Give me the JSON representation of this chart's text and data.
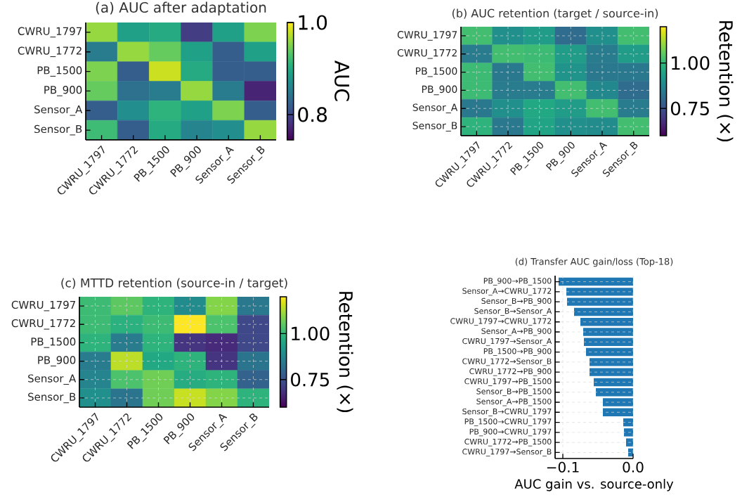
{
  "chart_data": [
    {
      "type": "heatmap",
      "title": "(a) AUC after adaptation",
      "categories": [
        "CWRU_1797",
        "CWRU_1772",
        "PB_1500",
        "PB_900",
        "Sensor_A",
        "Sensor_B"
      ],
      "y_categories": [
        "CWRU_1797",
        "CWRU_1772",
        "PB_1500",
        "PB_900",
        "Sensor_A",
        "Sensor_B"
      ],
      "cells": [
        [
          0.96,
          0.89,
          0.9,
          0.79,
          0.89,
          0.95
        ],
        [
          0.85,
          0.96,
          0.94,
          0.89,
          0.82,
          0.89
        ],
        [
          0.95,
          0.82,
          0.98,
          0.9,
          0.82,
          0.82
        ],
        [
          0.94,
          0.84,
          0.85,
          0.96,
          0.85,
          0.77
        ],
        [
          0.82,
          0.87,
          0.91,
          0.89,
          0.95,
          0.82
        ],
        [
          0.92,
          0.82,
          0.9,
          0.86,
          0.87,
          0.96
        ]
      ],
      "clim": [
        0.745,
        1.0
      ],
      "cticks": [
        {
          "value": 0.8,
          "label": "0.8"
        },
        {
          "value": 1.0,
          "label": "1.0"
        }
      ],
      "clabel": "AUC"
    },
    {
      "type": "heatmap",
      "title": "(b) AUC retention (target / source-in)",
      "categories": [
        "CWRU_1797",
        "CWRU_1772",
        "PB_1500",
        "PB_900",
        "Sensor_A",
        "Sensor_B"
      ],
      "y_categories": [
        "CWRU_1797",
        "CWRU_1772",
        "PB_1500",
        "PB_900",
        "Sensor_A",
        "Sensor_B"
      ],
      "cells": [
        [
          1.02,
          0.9,
          0.93,
          0.81,
          0.9,
          1.02
        ],
        [
          0.85,
          1.02,
          1.01,
          0.93,
          0.85,
          0.93
        ],
        [
          1.01,
          0.84,
          1.02,
          0.91,
          0.84,
          0.84
        ],
        [
          1.01,
          0.85,
          0.85,
          1.02,
          0.88,
          0.81
        ],
        [
          0.84,
          0.9,
          0.96,
          0.93,
          1.02,
          0.85
        ],
        [
          0.99,
          0.84,
          0.95,
          0.9,
          0.89,
          1.02
        ]
      ],
      "clim": [
        0.6,
        1.2
      ],
      "cticks": [
        {
          "value": 0.75,
          "label": "0.75"
        },
        {
          "value": 1.0,
          "label": "1.00"
        }
      ],
      "clabel": "Retention (×)",
      "grid": true
    },
    {
      "type": "heatmap",
      "title": "(c) MTTD retention (source-in / target)",
      "categories": [
        "CWRU_1797",
        "CWRU_1772",
        "PB_1500",
        "PB_900",
        "Sensor_A",
        "Sensor_B"
      ],
      "y_categories": [
        "CWRU_1797",
        "CWRU_1772",
        "PB_1500",
        "PB_900",
        "Sensor_A",
        "Sensor_B"
      ],
      "cells": [
        [
          1.01,
          1.05,
          0.99,
          0.89,
          1.09,
          0.84
        ],
        [
          1.01,
          0.98,
          1.01,
          1.2,
          1.03,
          0.73
        ],
        [
          0.99,
          0.85,
          0.99,
          0.69,
          0.67,
          0.73
        ],
        [
          0.85,
          1.14,
          0.96,
          0.99,
          0.69,
          0.83
        ],
        [
          0.87,
          1.03,
          1.07,
          0.97,
          0.99,
          0.79
        ],
        [
          0.9,
          0.83,
          1.07,
          1.15,
          1.09,
          0.99
        ]
      ],
      "clim": [
        0.6,
        1.2
      ],
      "cticks": [
        {
          "value": 0.75,
          "label": "0.75"
        },
        {
          "value": 1.0,
          "label": "1.00"
        }
      ],
      "clabel": "Retention (×)",
      "grid": true
    },
    {
      "type": "bar",
      "orientation": "horizontal",
      "title": "(d) Transfer AUC gain/loss (Top-18)",
      "xlabel": "AUC gain vs. source-only",
      "categories": [
        "PB_900→PB_1500",
        "Sensor_A→CWRU_1772",
        "Sensor_B→PB_900",
        "Sensor_B→Sensor_A",
        "CWRU_1797→CWRU_1772",
        "Sensor_A→PB_900",
        "CWRU_1797→Sensor_A",
        "PB_1500→PB_900",
        "CWRU_1772→Sensor_B",
        "CWRU_1772→PB_900",
        "CWRU_1797→PB_1500",
        "Sensor_B→PB_1500",
        "Sensor_A→PB_1500",
        "Sensor_B→CWRU_1797",
        "PB_1500→CWRU_1797",
        "PB_900→CWRU_1797",
        "CWRU_1772→PB_1500",
        "CWRU_1797→Sensor_B"
      ],
      "values": [
        -0.106,
        -0.095,
        -0.094,
        -0.084,
        -0.075,
        -0.071,
        -0.07,
        -0.067,
        -0.062,
        -0.062,
        -0.056,
        -0.053,
        -0.043,
        -0.043,
        -0.014,
        -0.013,
        -0.01,
        -0.007
      ],
      "color": "#1f77b4",
      "xlim": [
        -0.111,
        0.0
      ],
      "xticks": [
        {
          "value": -0.1,
          "label": "−0.1"
        },
        {
          "value": 0.0,
          "label": "0.0"
        }
      ],
      "grid": true
    }
  ]
}
